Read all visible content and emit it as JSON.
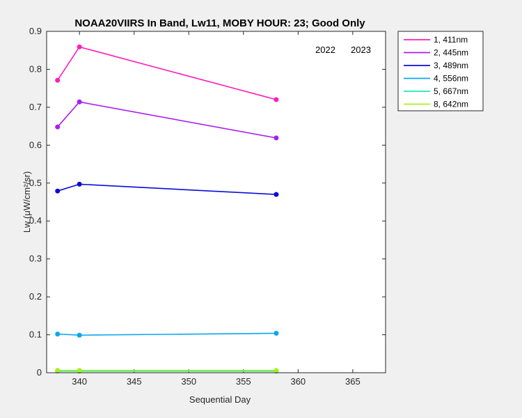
{
  "chart_data": {
    "type": "line",
    "title": "NOAA20VIIRS In Band,  Lw11, MOBY HOUR: 23;  Good Only",
    "xlabel": "Sequential Day",
    "ylabel": "Lw (μW/cm²/sr)",
    "xlim": [
      337,
      368
    ],
    "ylim": [
      0,
      0.9
    ],
    "xticks": [
      340,
      345,
      350,
      355,
      360,
      365
    ],
    "yticks": [
      0,
      0.1,
      0.2,
      0.3,
      0.4,
      0.5,
      0.6,
      0.7,
      0.8,
      0.9
    ],
    "grid": false,
    "legend_position": "outside-top-right",
    "annotations": [
      "2022",
      "2023"
    ],
    "x": [
      338,
      340,
      358
    ],
    "series": [
      {
        "name": "1, 411nm",
        "color": "#ff1dba",
        "values": [
          0.771,
          0.859,
          0.72
        ]
      },
      {
        "name": "2, 445nm",
        "color": "#a81ff0",
        "values": [
          0.648,
          0.714,
          0.619
        ]
      },
      {
        "name": "3, 489nm",
        "color": "#0b0bd6",
        "values": [
          0.479,
          0.497,
          0.47
        ]
      },
      {
        "name": "4, 556nm",
        "color": "#0aa6ee",
        "values": [
          0.102,
          0.099,
          0.104
        ]
      },
      {
        "name": "5, 667nm",
        "color": "#1ee8b0",
        "values": [
          0.004,
          0.004,
          0.004
        ]
      },
      {
        "name": "8, 642nm",
        "color": "#a8f01e",
        "values": [
          0.006,
          0.006,
          0.006
        ]
      }
    ]
  }
}
